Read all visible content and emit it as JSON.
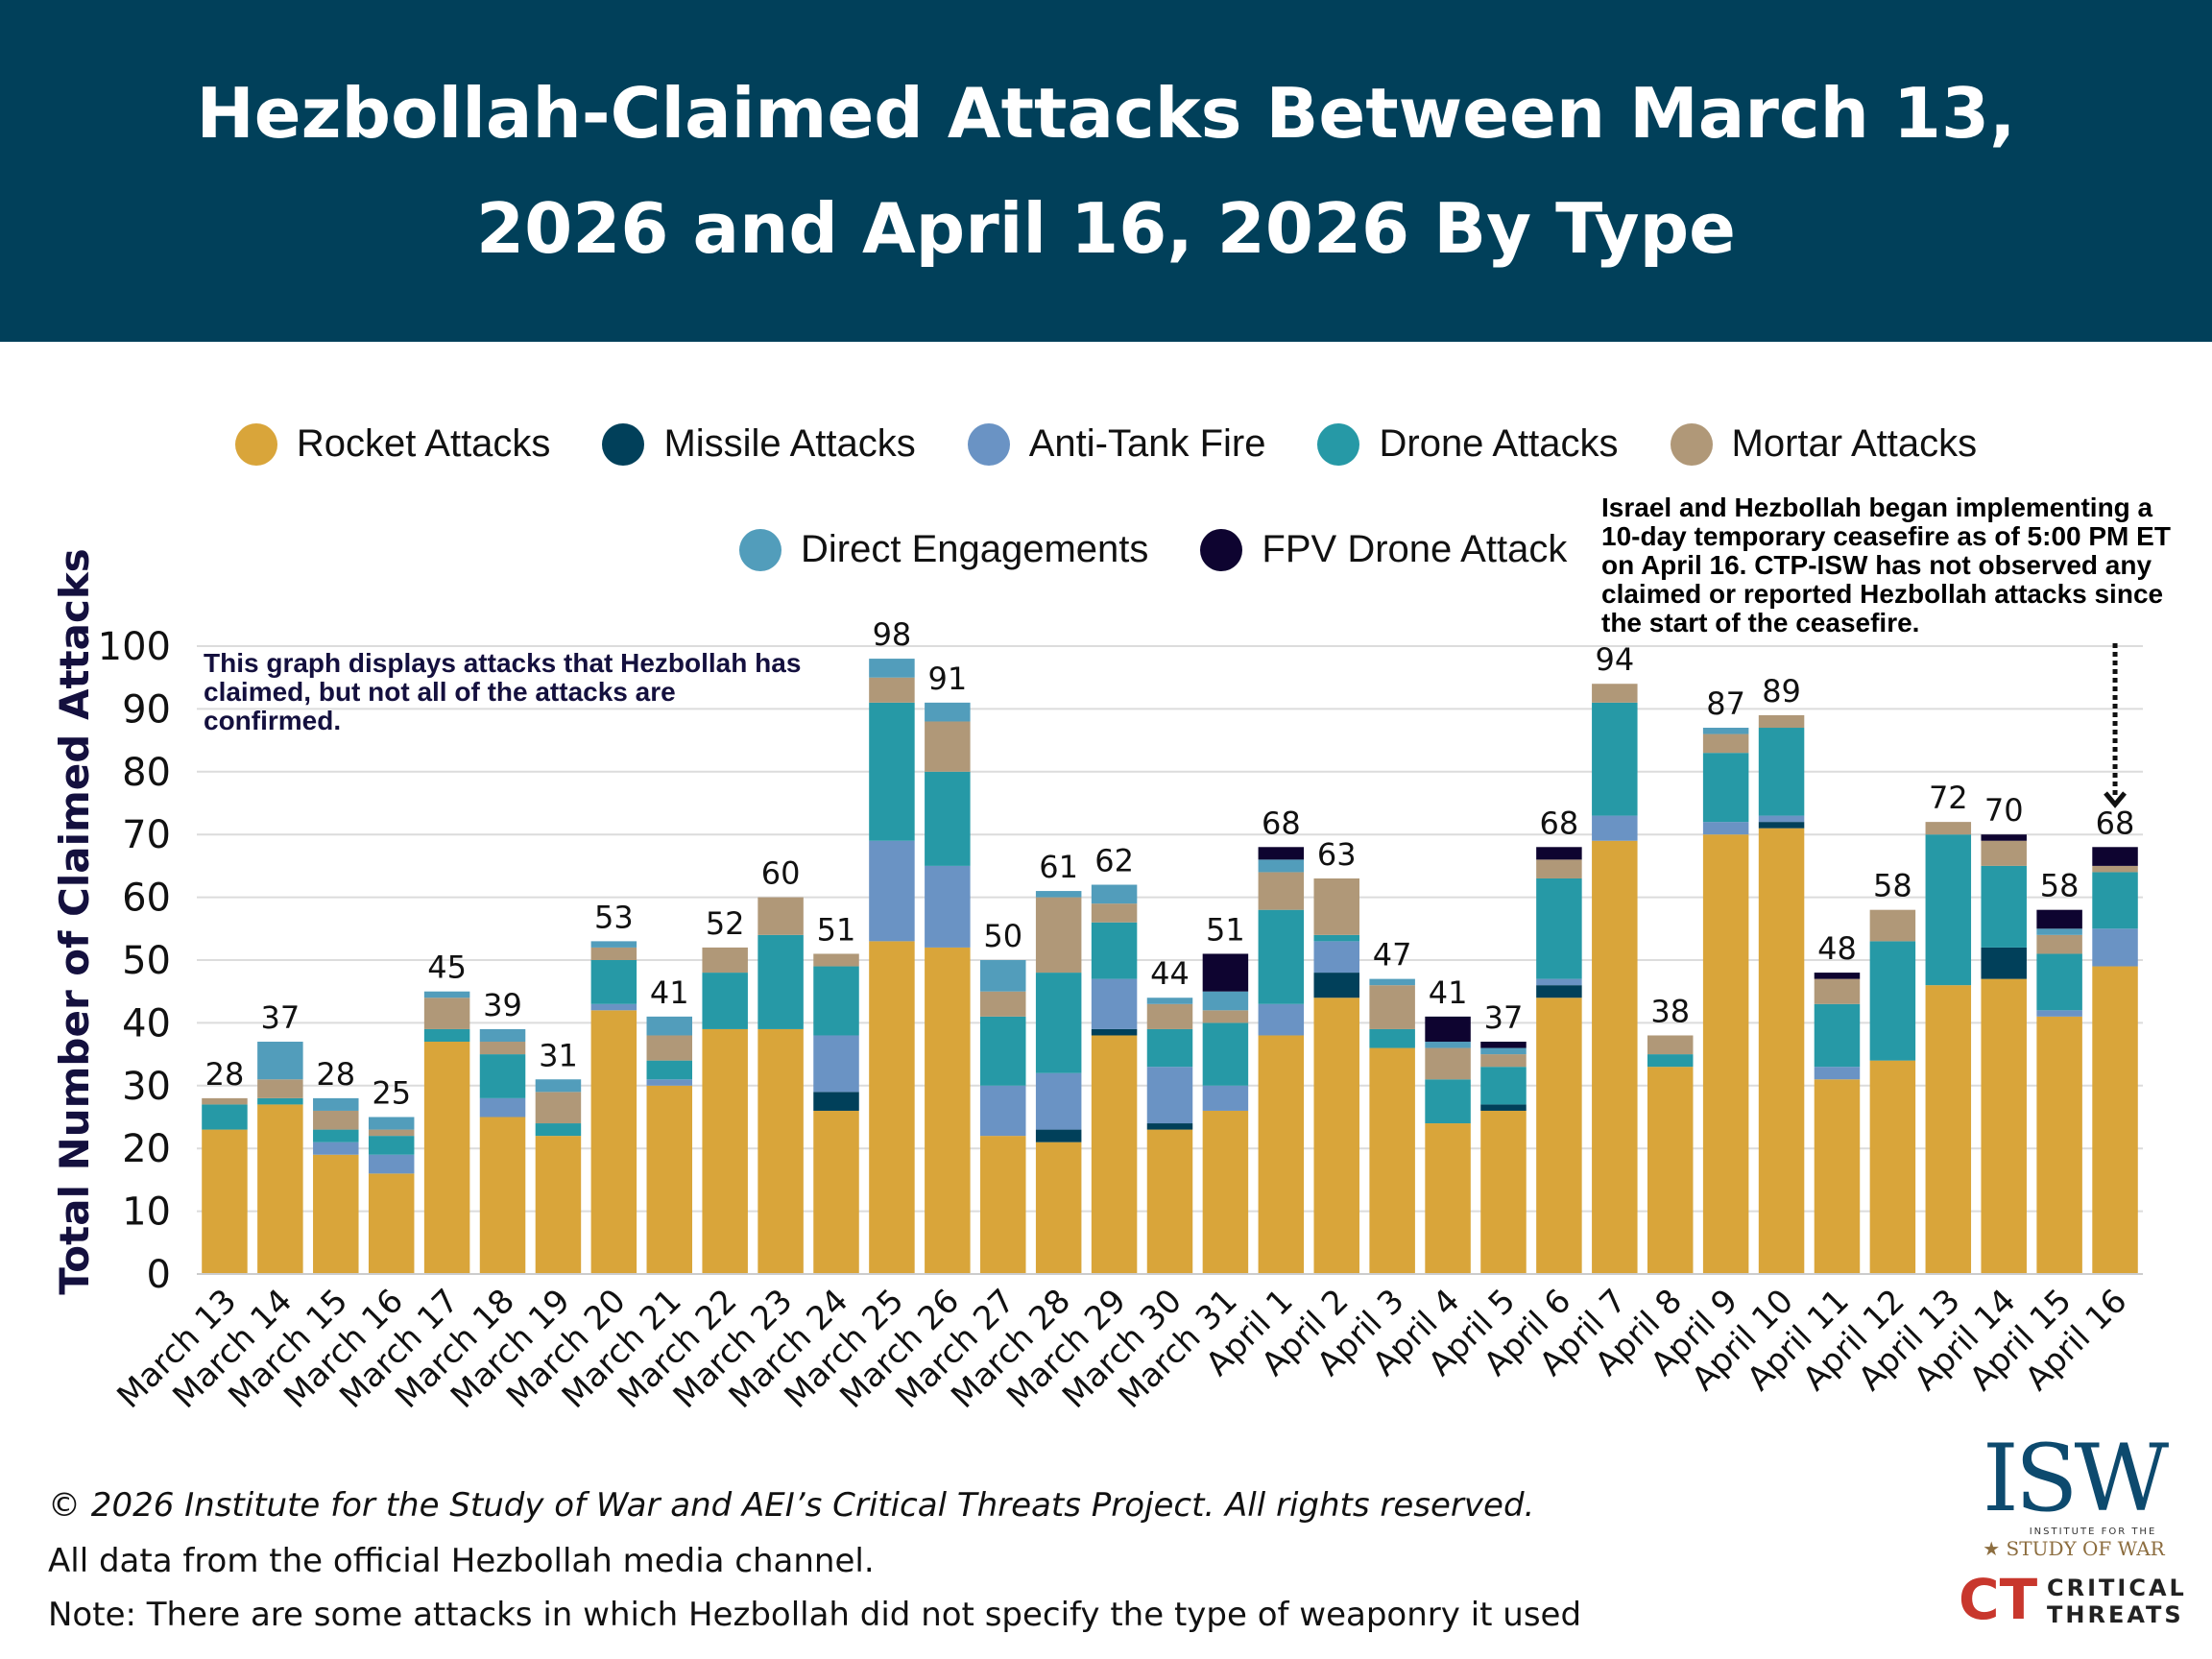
{
  "title": "Hezbollah-Claimed Attacks Between March 13, 2026 and April 16, 2026 By Type",
  "legend_row1": [
    "Rocket Attacks",
    "Missile Attacks",
    "Anti-Tank Fire",
    "Drone Attacks",
    "Mortar Attacks"
  ],
  "legend_row2": [
    "Direct Engagements",
    "FPV Drone Attack"
  ],
  "note_left": "This graph displays attacks that Hezbollah has claimed, but not all of the attacks are confirmed.",
  "note_ceasefire": "Israel and Hezbollah began implementing a 10-day temporary ceasefire as of 5:00 PM ET on April 16. CTP-ISW has not observed any claimed or reported Hezbollah attacks since the start of the ceasefire.",
  "footer": {
    "copyright": "© 2026 Institute for the Study of War and AEI’s Critical Threats Project. All rights reserved.",
    "source": "All data from the official Hezbollah media channel.",
    "note": "Note: There are some attacks in which Hezbollah did not specify the type of weaponry it used"
  },
  "logos": {
    "isw": "ISW",
    "isw_sub1": "INSTITUTE FOR THE",
    "isw_sub2": "STUDY OF WAR",
    "ct1": "CRITICAL",
    "ct2": "THREATS"
  },
  "chart_data": {
    "type": "bar",
    "stacked": true,
    "title": "Hezbollah-Claimed Attacks Between March 13, 2026 and April 16, 2026 By Type",
    "ylabel": "Total Number of Claimed Attacks",
    "xlabel": "",
    "ylim": [
      0,
      100
    ],
    "yticks": [
      0,
      10,
      20,
      30,
      40,
      50,
      60,
      70,
      80,
      90,
      100
    ],
    "grid": true,
    "legend_position": "top",
    "categories": [
      "March 13",
      "March 14",
      "March 15",
      "March 16",
      "March 17",
      "March 18",
      "March 19",
      "March 20",
      "March 21",
      "March 22",
      "March 23",
      "March 24",
      "March 25",
      "March 26",
      "March 27",
      "March 28",
      "March 29",
      "March 30",
      "March 31",
      "April 1",
      "April 2",
      "April 3",
      "April 4",
      "April 5",
      "April 6",
      "April 7",
      "April 8",
      "April 9",
      "April 10",
      "April 11",
      "April 12",
      "April 13",
      "April 14",
      "April 15",
      "April 16"
    ],
    "totals": [
      28,
      37,
      28,
      25,
      45,
      39,
      31,
      53,
      41,
      52,
      60,
      51,
      98,
      91,
      50,
      61,
      62,
      44,
      51,
      68,
      63,
      47,
      41,
      37,
      68,
      94,
      38,
      87,
      89,
      48,
      58,
      72,
      70,
      58,
      68
    ],
    "series": [
      {
        "name": "Rocket Attacks",
        "color": "#d9a53a",
        "values": [
          23,
          27,
          19,
          16,
          37,
          25,
          22,
          42,
          30,
          39,
          39,
          26,
          53,
          52,
          22,
          21,
          38,
          23,
          26,
          38,
          44,
          36,
          24,
          26,
          44,
          69,
          33,
          70,
          71,
          31,
          34,
          46,
          47,
          41,
          49
        ]
      },
      {
        "name": "Missile Attacks",
        "color": "#01405a",
        "values": [
          0,
          0,
          0,
          0,
          0,
          0,
          0,
          0,
          0,
          0,
          0,
          3,
          0,
          0,
          0,
          2,
          1,
          1,
          0,
          0,
          4,
          0,
          0,
          1,
          2,
          0,
          0,
          0,
          1,
          0,
          0,
          0,
          5,
          0,
          0
        ]
      },
      {
        "name": "Anti-Tank Fire",
        "color": "#6a93c4",
        "values": [
          0,
          0,
          2,
          3,
          0,
          3,
          0,
          1,
          1,
          0,
          0,
          9,
          16,
          13,
          8,
          9,
          8,
          9,
          4,
          5,
          5,
          0,
          0,
          0,
          1,
          4,
          0,
          2,
          1,
          2,
          0,
          0,
          0,
          1,
          6
        ]
      },
      {
        "name": "Drone Attacks",
        "color": "#2699a6",
        "values": [
          4,
          1,
          2,
          3,
          2,
          7,
          2,
          7,
          3,
          9,
          15,
          11,
          22,
          15,
          11,
          16,
          9,
          6,
          10,
          15,
          1,
          3,
          7,
          6,
          16,
          18,
          2,
          11,
          14,
          10,
          19,
          24,
          13,
          9,
          9
        ]
      },
      {
        "name": "Mortar Attacks",
        "color": "#b09878",
        "values": [
          1,
          3,
          3,
          1,
          5,
          2,
          5,
          2,
          4,
          4,
          6,
          2,
          4,
          8,
          4,
          12,
          3,
          4,
          2,
          6,
          9,
          7,
          5,
          2,
          3,
          3,
          3,
          3,
          2,
          4,
          5,
          2,
          4,
          3,
          1
        ]
      },
      {
        "name": "Direct Engagements",
        "color": "#529dbb",
        "values": [
          0,
          6,
          2,
          2,
          1,
          2,
          2,
          1,
          3,
          0,
          0,
          0,
          3,
          3,
          5,
          1,
          3,
          1,
          3,
          2,
          0,
          1,
          1,
          1,
          0,
          0,
          0,
          1,
          0,
          0,
          0,
          0,
          0,
          1,
          0
        ]
      },
      {
        "name": "FPV Drone Attack",
        "color": "#0e0430",
        "values": [
          0,
          0,
          0,
          0,
          0,
          0,
          0,
          0,
          0,
          0,
          0,
          0,
          0,
          0,
          0,
          0,
          0,
          0,
          6,
          2,
          0,
          0,
          4,
          1,
          2,
          0,
          0,
          0,
          0,
          1,
          0,
          0,
          1,
          3,
          3
        ]
      }
    ]
  }
}
